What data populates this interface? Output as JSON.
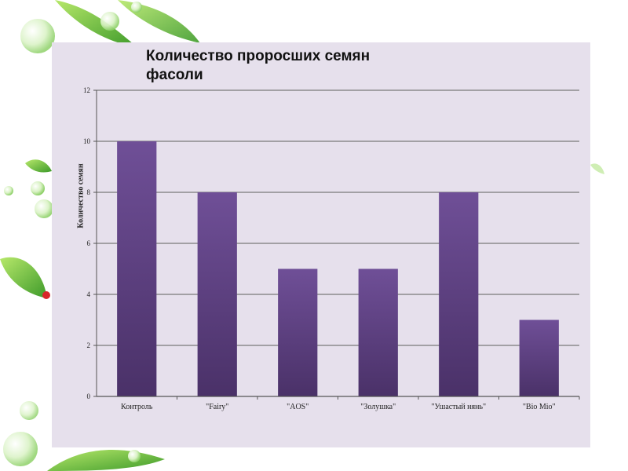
{
  "chart_data": {
    "type": "bar",
    "title": "Количество проросших семян фасоли",
    "ylabel": "Количество семян",
    "xlabel": "",
    "categories": [
      "Контроль",
      "\"Fairy\"",
      "\"AOS\"",
      "\"Золушка\"",
      "\"Ушастый нянь\"",
      "\"Bio Mio\""
    ],
    "values": [
      10,
      8,
      5,
      5,
      8,
      3
    ],
    "ylim": [
      0,
      12
    ],
    "yticks": [
      "0",
      "2",
      "4",
      "6",
      "8",
      "10",
      "12"
    ],
    "grid": true,
    "legend": "none",
    "bar_color_top": "#6f4f97",
    "bar_color_bottom": "#4a3168",
    "background": "#e6e0ec"
  }
}
